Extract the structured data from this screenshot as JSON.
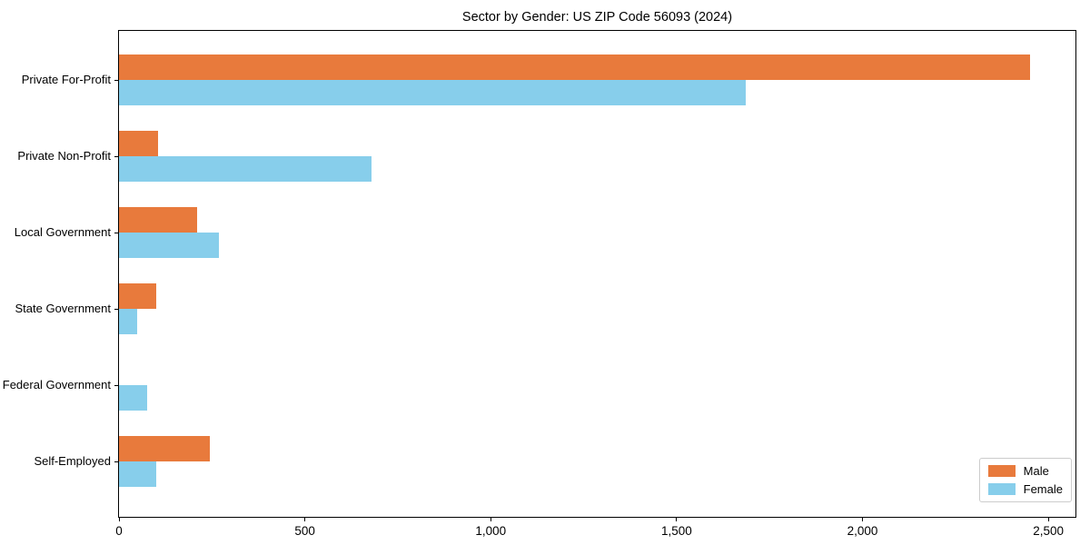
{
  "chart_data": {
    "type": "bar",
    "orientation": "horizontal",
    "title": "Sector by Gender: US ZIP Code 56093 (2024)",
    "categories": [
      "Private For-Profit",
      "Private Non-Profit",
      "Local Government",
      "State Government",
      "Federal Government",
      "Self-Employed"
    ],
    "series": [
      {
        "name": "Male",
        "color": "#E87A3C",
        "values": [
          2450,
          105,
          210,
          100,
          0,
          245
        ]
      },
      {
        "name": "Female",
        "color": "#87CEEB",
        "values": [
          1685,
          680,
          270,
          50,
          75,
          100
        ]
      }
    ],
    "xlabel": "",
    "ylabel": "",
    "xlim": [
      0,
      2573
    ],
    "xticks": [
      0,
      500,
      1000,
      1500,
      2000,
      2500
    ],
    "xtick_labels": [
      "0",
      "500",
      "1,000",
      "1,500",
      "2,000",
      "2,500"
    ],
    "legend": {
      "position": "lower right",
      "items": [
        "Male",
        "Female"
      ]
    },
    "grid": false,
    "background_color": "#ffffff",
    "axis_color": "#000000",
    "legend_border_color": "#cccccc"
  }
}
